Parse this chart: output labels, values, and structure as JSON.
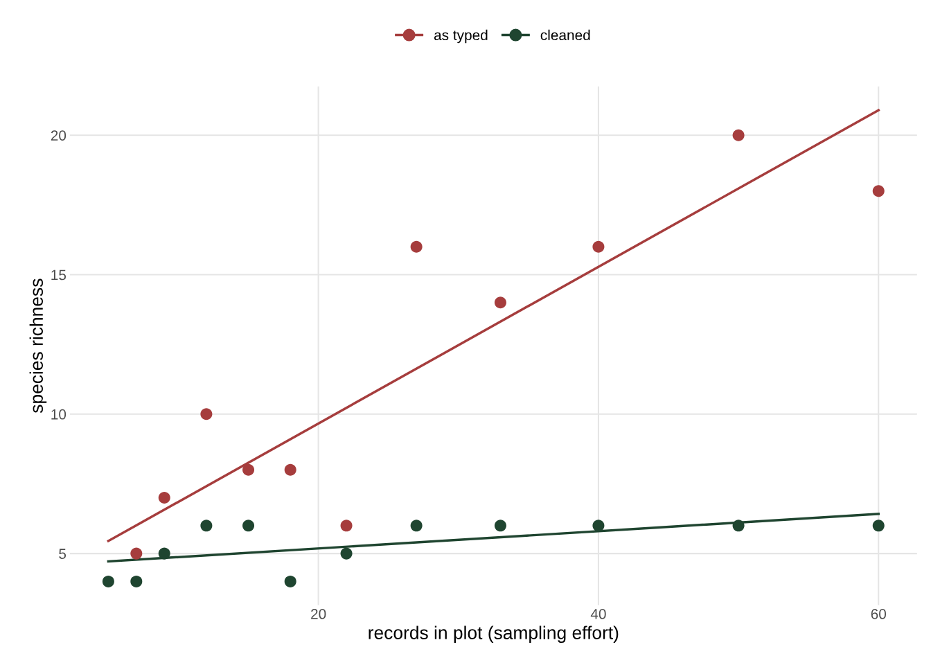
{
  "chart_data": {
    "type": "scatter",
    "xlabel": "records in plot (sampling effort)",
    "ylabel": "species richness",
    "x": [
      5,
      7,
      9,
      12,
      15,
      18,
      22,
      27,
      33,
      40,
      50,
      60
    ],
    "series": [
      {
        "name": "as typed",
        "color": "#a63d3d",
        "marker": "circle",
        "values": [
          null,
          5,
          7,
          10,
          8,
          8,
          6,
          16,
          14,
          16,
          20,
          18
        ]
      },
      {
        "name": "cleaned",
        "color": "#1f4530",
        "marker": "circle",
        "values": [
          4,
          4,
          5,
          6,
          6,
          4,
          5,
          6,
          6,
          6,
          6,
          6
        ]
      },
      {
        "color": "#a63d3d",
        "type": "line",
        "values": [
          5.45,
          null,
          null,
          null,
          null,
          null,
          null,
          null,
          null,
          null,
          null,
          20.9
        ]
      },
      {
        "color": "#1f4530",
        "type": "line",
        "values": [
          4.72,
          null,
          null,
          null,
          null,
          null,
          null,
          null,
          null,
          null,
          null,
          6.42
        ]
      }
    ],
    "xlim": [
      2.25,
      62.75
    ],
    "ylim": [
      3.15,
      21.75
    ],
    "xticks": [
      20,
      40,
      60
    ],
    "yticks": [
      5,
      10,
      15,
      20
    ],
    "grid": true,
    "legend": "top",
    "line_style": "solid"
  }
}
